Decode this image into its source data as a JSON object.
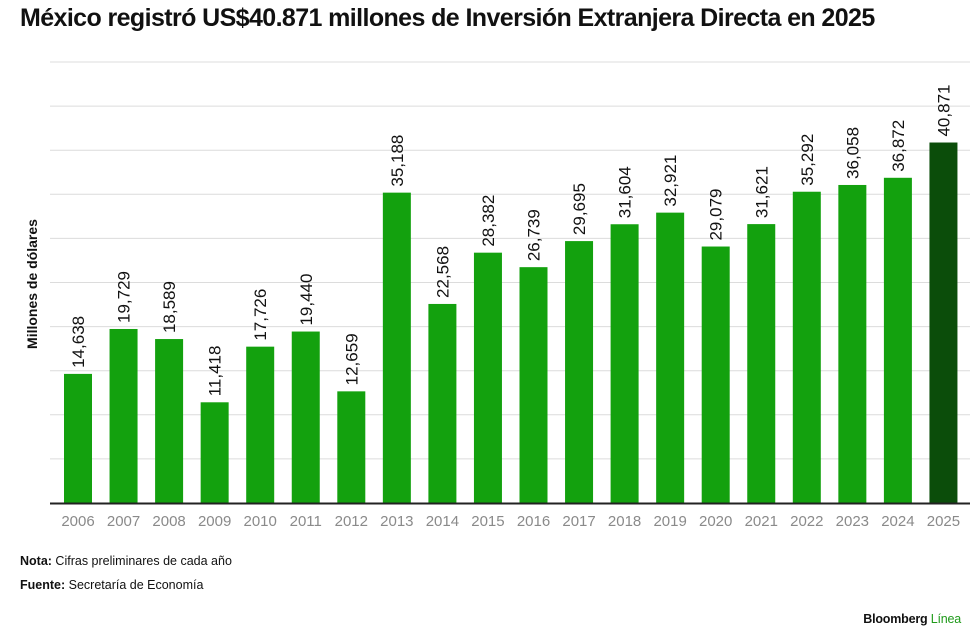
{
  "title": "México registró US$40.871 millones de Inversión Extranjera Directa en 2025",
  "chart_data": {
    "type": "bar",
    "title": "México registró US$40.871 millones de Inversión Extranjera Directa en 2025",
    "xlabel": "",
    "ylabel": "Millones de dólares",
    "ylim": [
      0,
      50000
    ],
    "grid": true,
    "categories": [
      "2006",
      "2007",
      "2008",
      "2009",
      "2010",
      "2011",
      "2012",
      "2013",
      "2014",
      "2015",
      "2016",
      "2017",
      "2018",
      "2019",
      "2020",
      "2021",
      "2022",
      "2023",
      "2024",
      "2025"
    ],
    "values": [
      14638,
      19729,
      18589,
      11418,
      17726,
      19440,
      12659,
      35188,
      22568,
      28382,
      26739,
      29695,
      31604,
      32921,
      29079,
      31621,
      35292,
      36058,
      36872,
      40871
    ],
    "labels": [
      "14,638",
      "19,729",
      "18,589",
      "11,418",
      "17,726",
      "19,440",
      "12,659",
      "35,188",
      "22,568",
      "28,382",
      "26,739",
      "29,695",
      "31,604",
      "32,921",
      "29,079",
      "31,621",
      "35,292",
      "36,058",
      "36,872",
      "40,871"
    ],
    "colors": {
      "bar": "#13a10e",
      "highlight": "#0b4d0a",
      "grid": "#dcdcdc",
      "axis": "#222222",
      "tick_text": "#8a8a8a"
    },
    "highlight_category": "2025"
  },
  "notes": {
    "note_label": "Nota:",
    "note_text": " Cifras preliminares de cada año",
    "source_label": "Fuente:",
    "source_text": " Secretaría de Economía"
  },
  "brand": {
    "main": "Bloomberg",
    "accent": " Línea"
  }
}
